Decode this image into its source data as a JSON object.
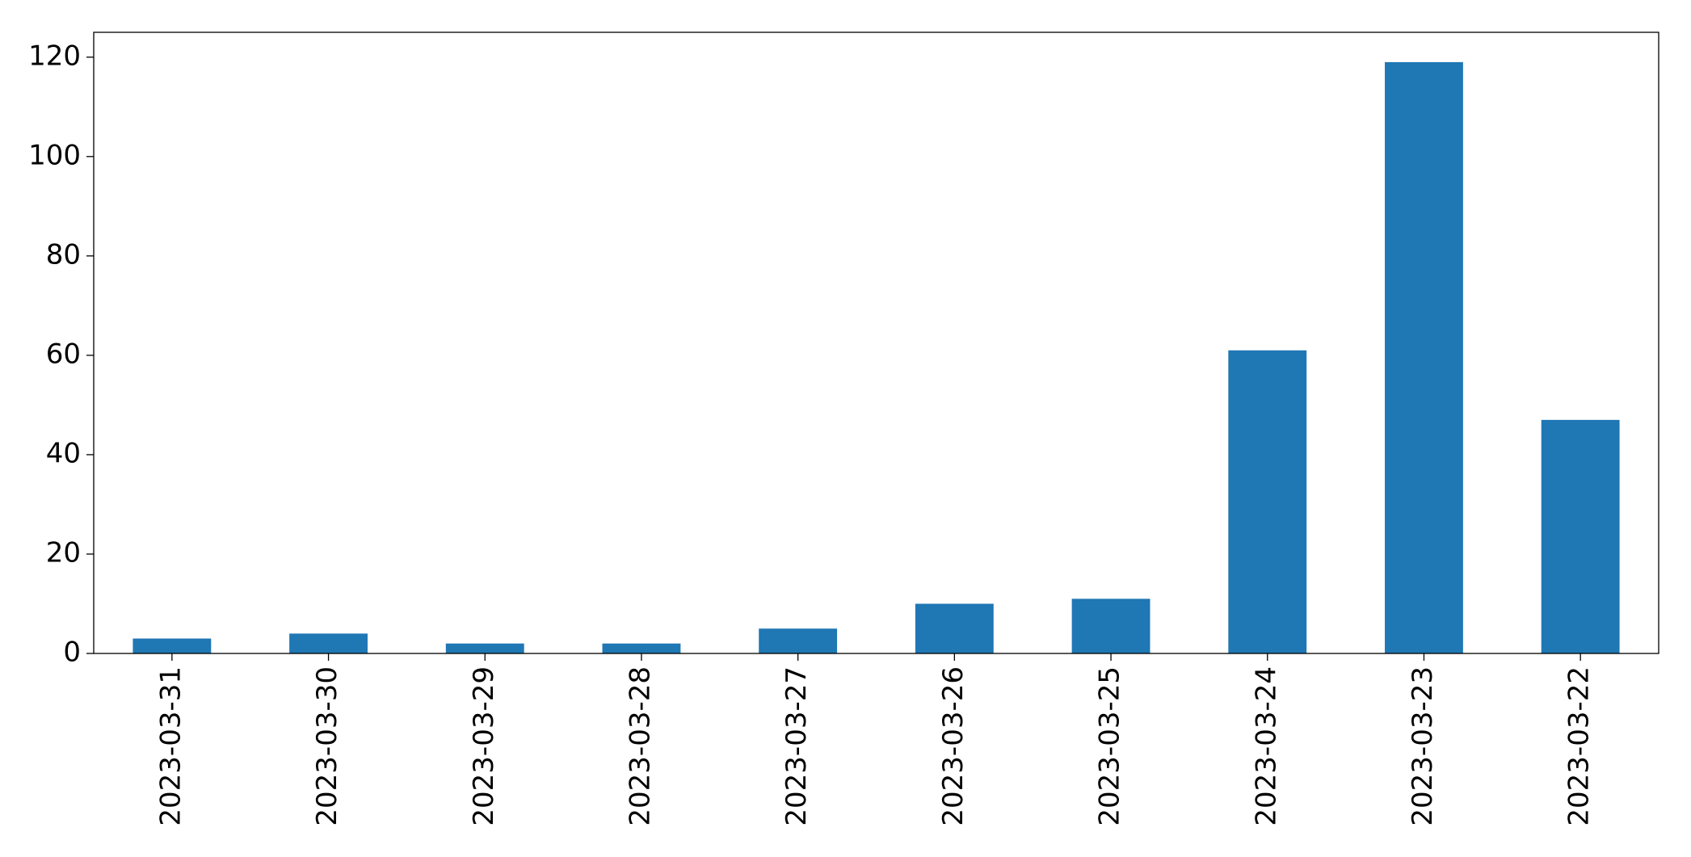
{
  "chart_data": {
    "type": "bar",
    "categories": [
      "2023-03-31",
      "2023-03-30",
      "2023-03-29",
      "2023-03-28",
      "2023-03-27",
      "2023-03-26",
      "2023-03-25",
      "2023-03-24",
      "2023-03-23",
      "2023-03-22"
    ],
    "values": [
      3,
      4,
      2,
      2,
      5,
      10,
      11,
      61,
      119,
      47
    ],
    "color": "#1f77b4",
    "ylim": [
      0,
      125
    ],
    "yticks": [
      0,
      20,
      40,
      60,
      80,
      100,
      120
    ],
    "grid": false
  }
}
